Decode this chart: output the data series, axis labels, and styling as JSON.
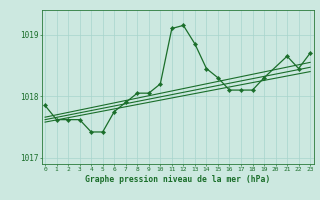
{
  "xlabel": "Graphe pression niveau de la mer (hPa)",
  "bg_color": "#cce8e0",
  "grid_color": "#a8d4cc",
  "line_color": "#1a6e2a",
  "x_values": [
    0,
    1,
    2,
    3,
    4,
    5,
    6,
    7,
    8,
    9,
    10,
    11,
    12,
    13,
    14,
    15,
    16,
    17,
    18,
    19,
    21,
    22,
    23
  ],
  "main_values": [
    1017.85,
    1017.62,
    1017.62,
    1017.62,
    1017.42,
    1017.42,
    1017.75,
    1017.9,
    1018.05,
    1018.05,
    1018.2,
    1019.1,
    1019.15,
    1018.85,
    1018.45,
    1018.3,
    1018.1,
    1018.1,
    1018.1,
    1018.3,
    1018.65,
    1018.45,
    1018.7
  ],
  "seg1_end": 19,
  "seg2_start": 21,
  "trend_lines": [
    {
      "x0": 0,
      "y0": 1017.66,
      "x1": 23,
      "y1": 1018.55
    },
    {
      "x0": 0,
      "y0": 1017.62,
      "x1": 23,
      "y1": 1018.47
    },
    {
      "x0": 0,
      "y0": 1017.58,
      "x1": 23,
      "y1": 1018.4
    }
  ],
  "ylim": [
    1016.9,
    1019.4
  ],
  "yticks": [
    1017,
    1018,
    1019
  ],
  "xticks": [
    0,
    1,
    2,
    3,
    4,
    5,
    6,
    7,
    8,
    9,
    10,
    11,
    12,
    13,
    14,
    15,
    16,
    17,
    18,
    19,
    20,
    21,
    22,
    23
  ],
  "xlim": [
    -0.3,
    23.3
  ]
}
